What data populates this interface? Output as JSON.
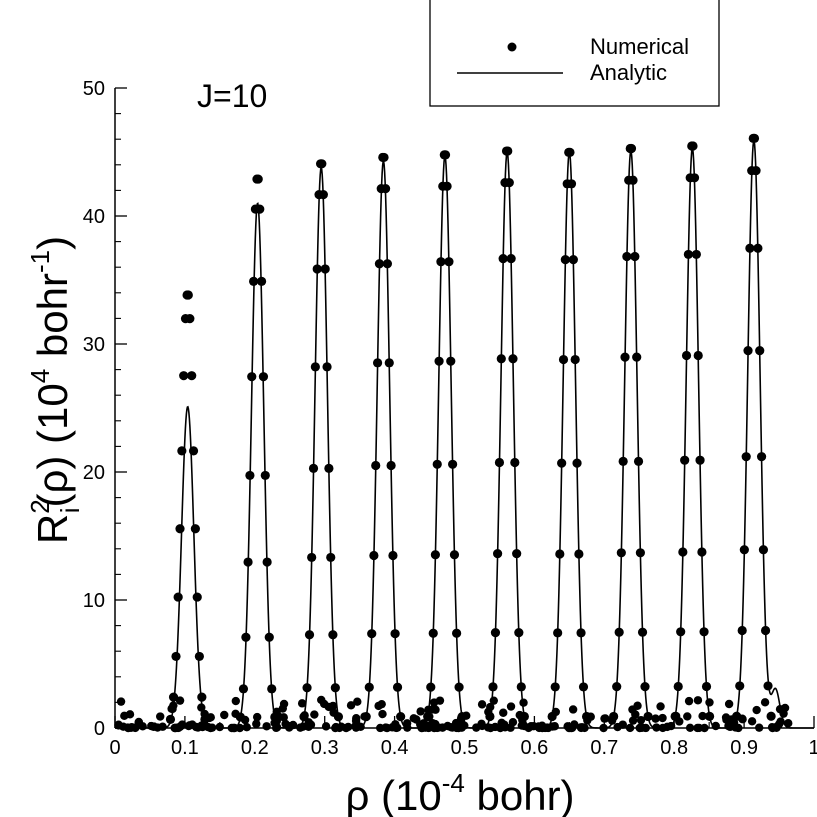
{
  "chart_data": {
    "type": "scatter",
    "annotation": "J=10",
    "xlabel": {
      "base": "ρ (10",
      "sup": "-4",
      "tail": " bohr)"
    },
    "ylabel": {
      "r": "R",
      "sup": "2",
      "sub": "i",
      "rho": "(ρ)  (10",
      "sup2": "4",
      "mid": " bohr",
      "sup3": "-1",
      "end": ")"
    },
    "xlim": [
      0,
      1
    ],
    "ylim": [
      0,
      50
    ],
    "xticks": [
      "0",
      "0.1",
      "0.2",
      "0.3",
      "0.4",
      "0.5",
      "0.6",
      "0.7",
      "0.8",
      "0.9",
      "1"
    ],
    "yticks": [
      "0",
      "10",
      "20",
      "30",
      "40",
      "50"
    ],
    "legend": {
      "position": "top-right",
      "entries": [
        {
          "name": "Numerical",
          "marker": "dot"
        },
        {
          "name": "Analytic",
          "marker": "line"
        }
      ]
    },
    "peaks": [
      {
        "center": 0.104,
        "analytic": 25.1,
        "numerical": 34.0
      },
      {
        "center": 0.204,
        "analytic": 41.0,
        "numerical": 43.1
      },
      {
        "center": 0.295,
        "analytic": 43.8,
        "numerical": 44.3
      },
      {
        "center": 0.384,
        "analytic": 44.3,
        "numerical": 44.8
      },
      {
        "center": 0.472,
        "analytic": 44.7,
        "numerical": 45.0
      },
      {
        "center": 0.561,
        "analytic": 45.0,
        "numerical": 45.3
      },
      {
        "center": 0.65,
        "analytic": 45.0,
        "numerical": 45.2
      },
      {
        "center": 0.738,
        "analytic": 45.1,
        "numerical": 45.5
      },
      {
        "center": 0.826,
        "analytic": 45.3,
        "numerical": 45.7
      },
      {
        "center": 0.914,
        "analytic": 45.9,
        "numerical": 46.3
      }
    ],
    "peak_sigma": 0.0088,
    "tail_bump": {
      "center": 0.945,
      "value": 3.0
    }
  }
}
